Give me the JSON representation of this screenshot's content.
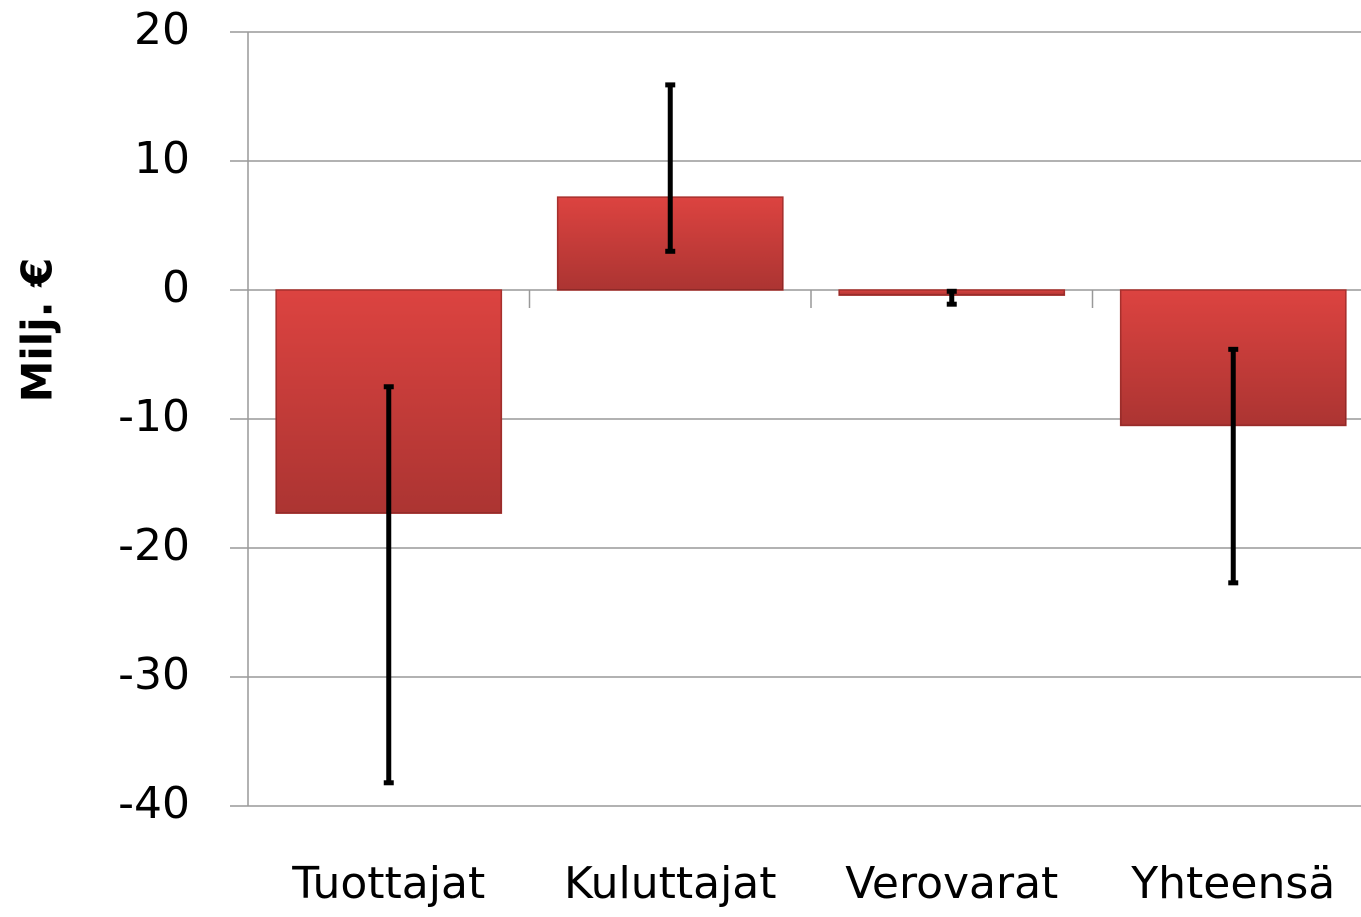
{
  "chart_data": {
    "type": "bar",
    "ylabel": "Milj. €",
    "categories": [
      "Tuottajat",
      "Kuluttajat",
      "Verovarat",
      "Yhteensä"
    ],
    "values": [
      -17.3,
      7.2,
      -0.4,
      -10.5
    ],
    "lower": [
      -38.2,
      3,
      -1.1,
      -22.7
    ],
    "upper": [
      -7.5,
      15.9,
      -0.1,
      -4.6
    ],
    "color": "#dc4340",
    "ylim": [
      -40,
      20
    ],
    "yticks": [
      -40,
      -30,
      -20,
      -10,
      0,
      10,
      20
    ],
    "grid": true
  }
}
